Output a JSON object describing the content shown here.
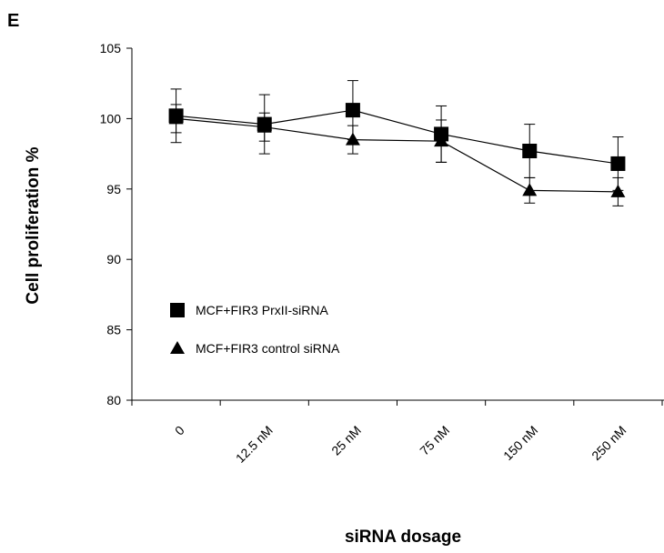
{
  "chart_data": {
    "type": "line",
    "panel_label": "E",
    "title": "",
    "xlabel": "siRNA dosage",
    "ylabel": "Cell proliferation %",
    "categories": [
      "0",
      "12.5 nM",
      "25 nM",
      "75 nM",
      "150 nM",
      "250 nM"
    ],
    "ylim": [
      80,
      105
    ],
    "yticks": [
      "80",
      "85",
      "90",
      "95",
      "100",
      "105"
    ],
    "grid": false,
    "legend_position": "lower-left",
    "series": [
      {
        "name": "MCF+FIR3 PrxII-siRNA",
        "marker": "square",
        "values": [
          100.2,
          99.6,
          100.6,
          98.9,
          97.7,
          96.8
        ],
        "error": [
          1.9,
          2.1,
          2.1,
          2.0,
          1.9,
          1.9
        ],
        "color": "#000000"
      },
      {
        "name": "MCF+FIR3 control siRNA",
        "marker": "triangle",
        "values": [
          100.0,
          99.4,
          98.5,
          98.4,
          94.9,
          94.8
        ],
        "error": [
          1.0,
          1.0,
          1.0,
          1.5,
          0.9,
          1.0
        ],
        "color": "#000000"
      }
    ]
  }
}
